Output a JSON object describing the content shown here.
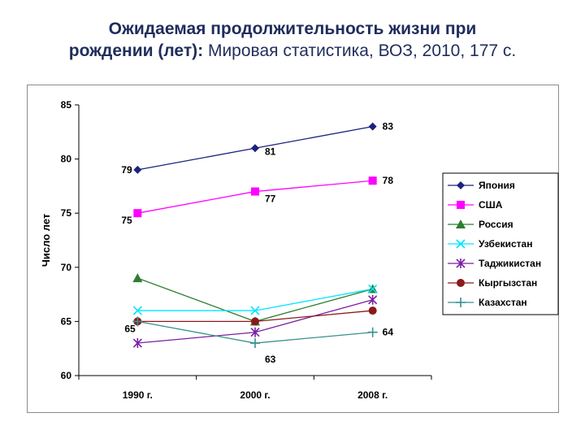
{
  "title": {
    "line1": "Ожидаемая продолжительность жизни при",
    "line2_bold": "рождении (лет):",
    "line2_rest": " Мировая статистика, ВОЗ, 2010, 177 с."
  },
  "chart_data": {
    "type": "line",
    "title": "",
    "xlabel": "",
    "ylabel": "Число лет",
    "categories": [
      "1990 г.",
      "2000 г.",
      "2008 г."
    ],
    "ylim": [
      60,
      85
    ],
    "yticks": [
      60,
      65,
      70,
      75,
      80,
      85
    ],
    "legend_position": "right",
    "grid": false,
    "series": [
      {
        "name": "Япония",
        "values": [
          79,
          81,
          83
        ],
        "color": "#1a237e",
        "marker": "diamond",
        "labels": [
          "79",
          "81",
          "83"
        ]
      },
      {
        "name": "США",
        "values": [
          75,
          77,
          78
        ],
        "color": "#ff00ff",
        "marker": "square",
        "labels": [
          "75",
          "77",
          "78"
        ]
      },
      {
        "name": "Россия",
        "values": [
          69,
          65,
          68
        ],
        "color": "#2e7d32",
        "marker": "triangle",
        "labels": []
      },
      {
        "name": "Узбекистан",
        "values": [
          66,
          66,
          68
        ],
        "color": "#00e5ff",
        "marker": "x",
        "labels": []
      },
      {
        "name": "Таджикистан",
        "values": [
          63,
          64,
          67
        ],
        "color": "#7b1fa2",
        "marker": "star",
        "labels": []
      },
      {
        "name": "Кыргызстан",
        "values": [
          65,
          65,
          66
        ],
        "color": "#8b1a1a",
        "marker": "circle",
        "labels": [
          "65",
          "",
          ""
        ]
      },
      {
        "name": "Казахстан",
        "values": [
          65,
          63,
          64
        ],
        "color": "#3a8f8f",
        "marker": "plus",
        "labels": [
          "",
          "63",
          "64"
        ]
      }
    ]
  }
}
